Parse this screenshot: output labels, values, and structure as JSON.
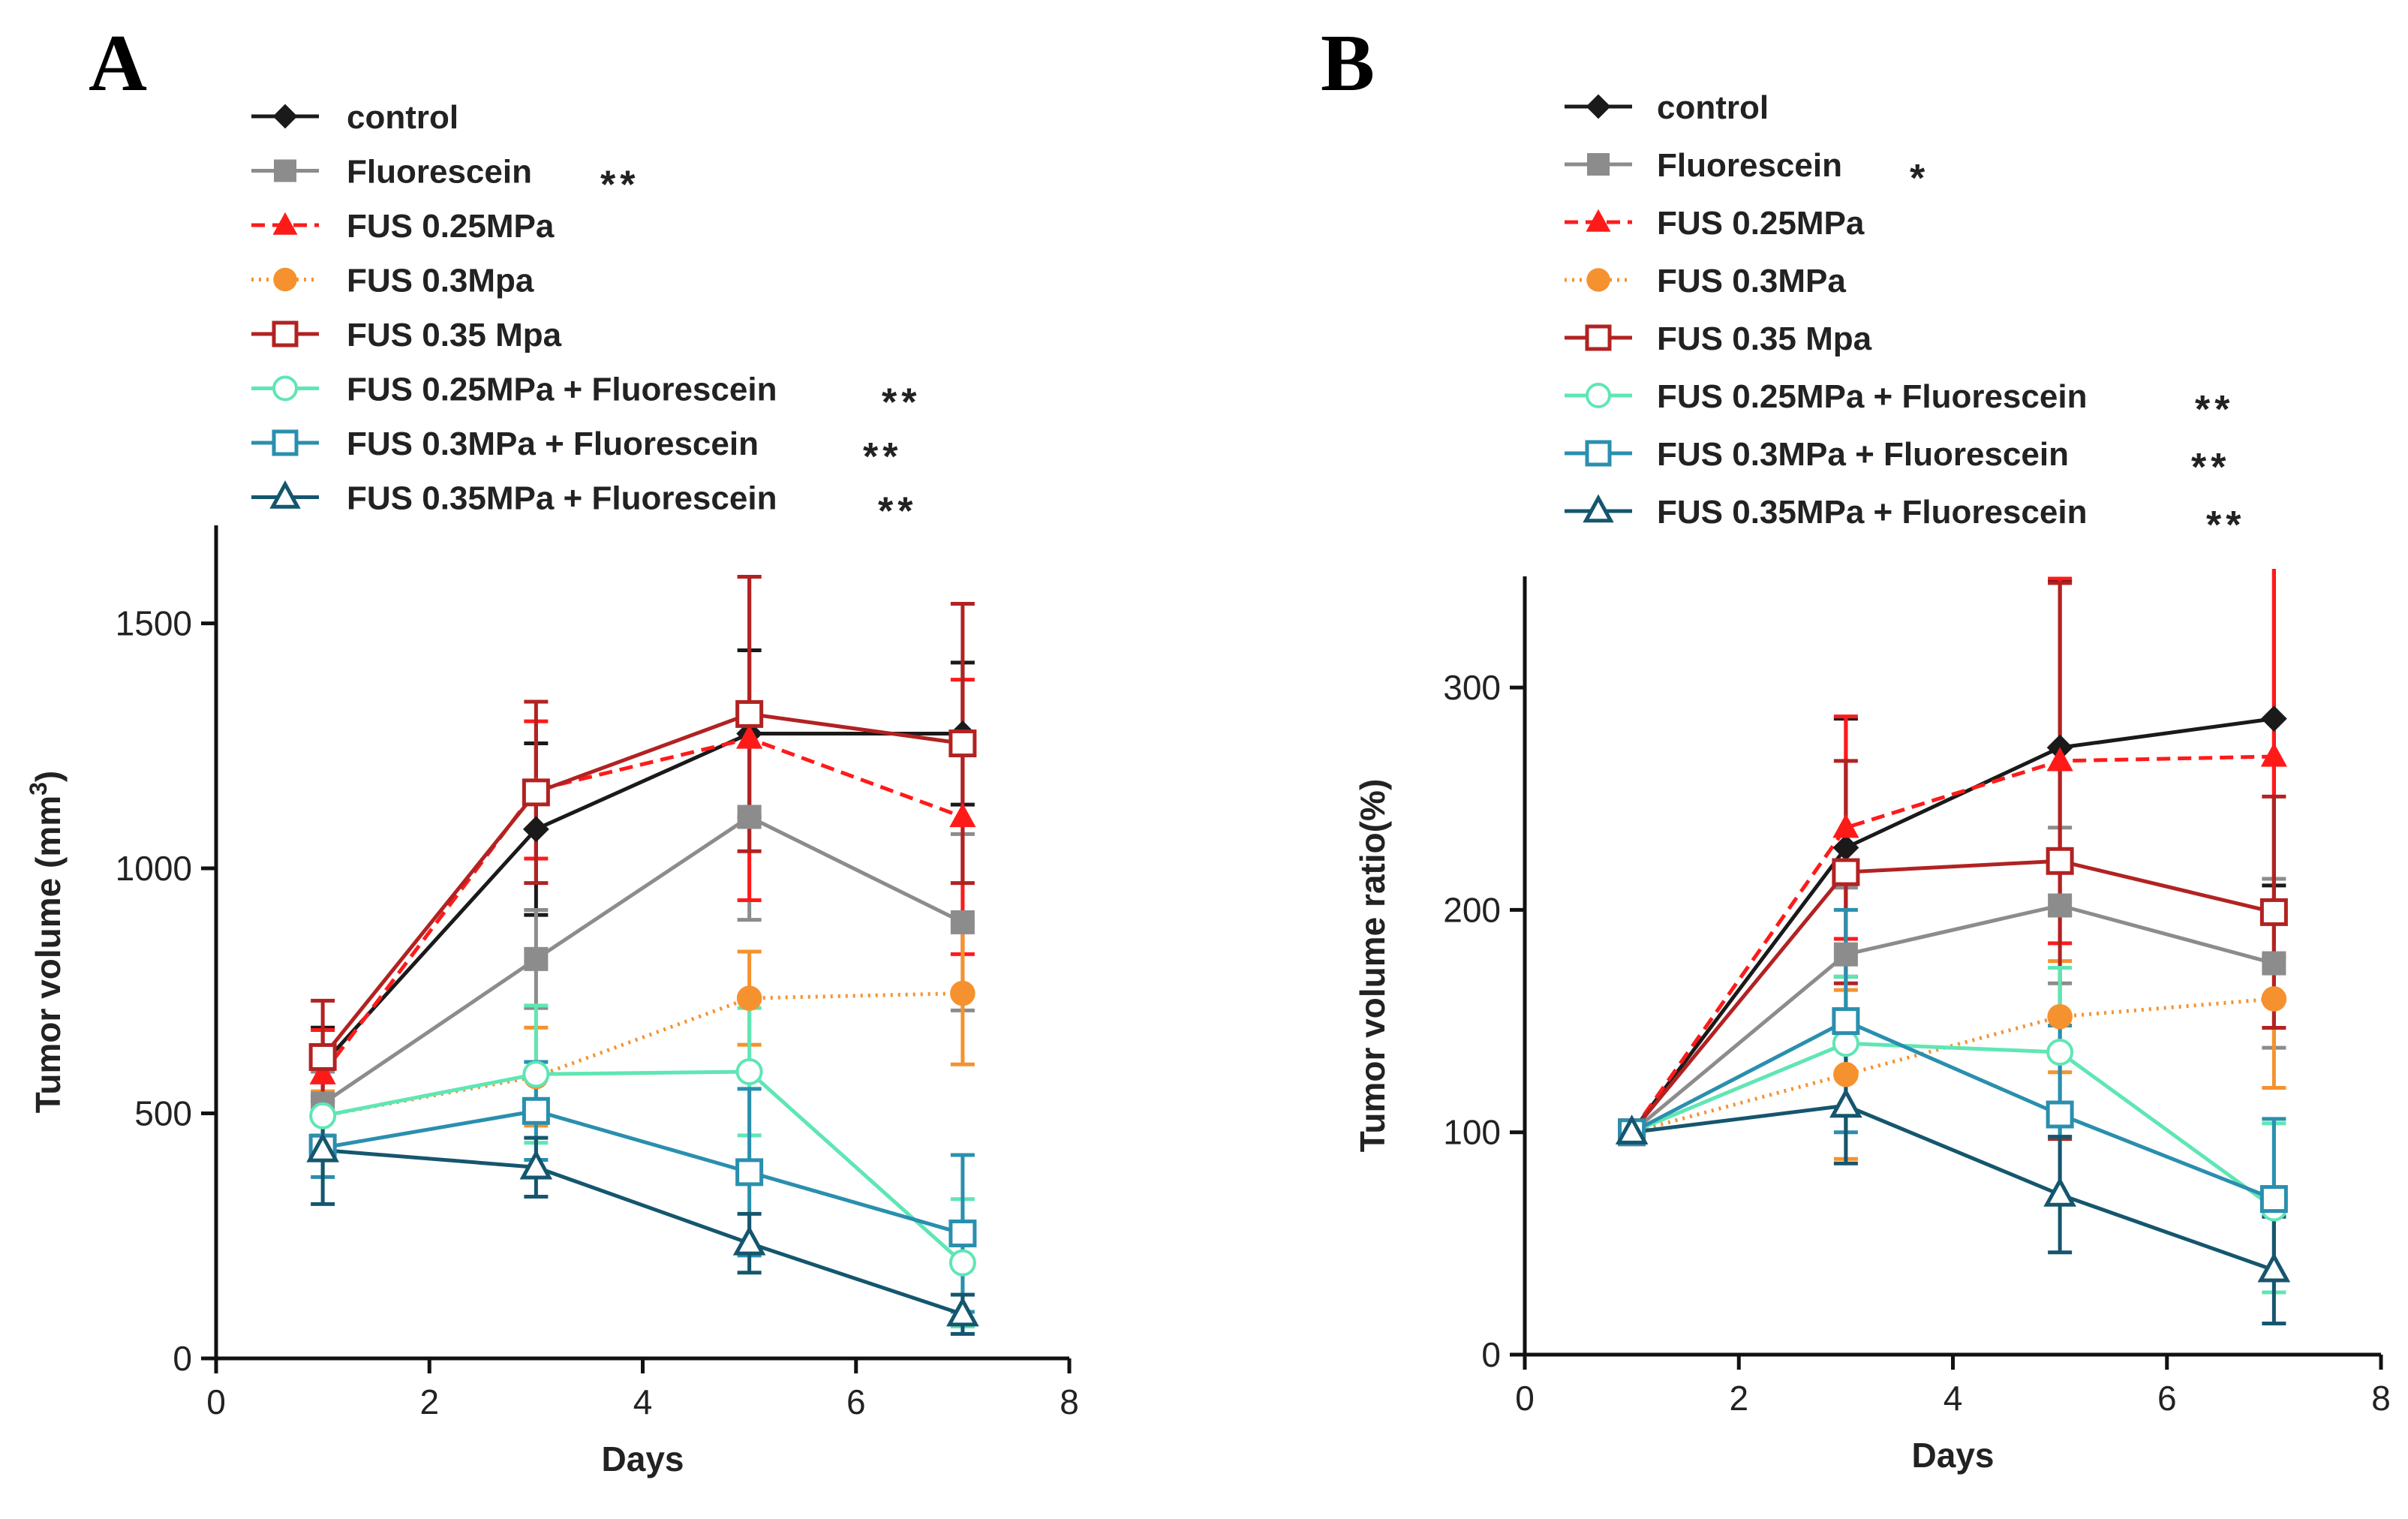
{
  "chart_data": [
    {
      "panel": "A",
      "type": "line",
      "xlabel": "Days",
      "ylabel": "Tumor volume (mm3)",
      "ylabel_main": "Tumor  volume (mm",
      "ylabel_sup": "3",
      "ylabel_end": ")",
      "xlim": [
        0,
        8
      ],
      "ylim": [
        0,
        1700
      ],
      "xticks": [
        0,
        2,
        4,
        6,
        8
      ],
      "yticks": [
        0,
        500,
        1000,
        1500
      ],
      "grid": false,
      "legend_position": "top-left",
      "series": [
        {
          "name": "control",
          "sig": "",
          "color": "#1a1a1a",
          "marker": "diamond",
          "dash": "solid",
          "x": [
            1,
            3,
            5,
            7
          ],
          "values": [
            600,
            1080,
            1275,
            1275
          ],
          "err": [
            75,
            175,
            170,
            145
          ]
        },
        {
          "name": "Fluorescein",
          "sig": "**",
          "color": "#8c8c8c",
          "marker": "square-filled",
          "dash": "solid",
          "x": [
            1,
            3,
            5,
            7
          ],
          "values": [
            520,
            815,
            1105,
            890
          ],
          "err": [
            65,
            100,
            210,
            180
          ]
        },
        {
          "name": "FUS 0.25MPa",
          "sig": "",
          "color": "#ff1a1a",
          "marker": "triangle-filled",
          "dash": "dashed",
          "x": [
            1,
            3,
            5,
            7
          ],
          "values": [
            580,
            1160,
            1265,
            1105
          ],
          "err": [
            90,
            140,
            330,
            280
          ]
        },
        {
          "name": "FUS 0.3Mpa",
          "sig": "",
          "color": "#f5922f",
          "marker": "circle-filled",
          "dash": "dotted",
          "x": [
            1,
            3,
            5,
            7
          ],
          "values": [
            495,
            575,
            735,
            745
          ],
          "err": [
            50,
            100,
            95,
            145
          ]
        },
        {
          "name": "FUS 0.35 Mpa",
          "sig": "",
          "color": "#b22222",
          "marker": "square-open",
          "dash": "solid",
          "x": [
            1,
            3,
            5,
            7
          ],
          "values": [
            615,
            1155,
            1315,
            1255
          ],
          "err": [
            115,
            185,
            280,
            285
          ]
        },
        {
          "name": "FUS 0.25MPa + Fluorescein",
          "sig": "**",
          "color": "#5fe6b4",
          "marker": "circle-open",
          "dash": "solid",
          "x": [
            1,
            3,
            5,
            7
          ],
          "values": [
            495,
            580,
            585,
            195
          ],
          "err": [
            40,
            140,
            130,
            130
          ]
        },
        {
          "name": "FUS 0.3MPa + Fluorescein",
          "sig": "**",
          "color": "#2a8fae",
          "marker": "square-open",
          "dash": "solid",
          "x": [
            1,
            3,
            5,
            7
          ],
          "values": [
            430,
            505,
            380,
            255
          ],
          "err": [
            60,
            100,
            170,
            160
          ]
        },
        {
          "name": "FUS 0.35MPa + Fluorescein",
          "sig": "**",
          "color": "#15566e",
          "marker": "triangle-open",
          "dash": "solid",
          "x": [
            1,
            3,
            5,
            7
          ],
          "values": [
            425,
            390,
            235,
            90
          ],
          "err": [
            110,
            60,
            60,
            40
          ]
        }
      ]
    },
    {
      "panel": "B",
      "type": "line",
      "xlabel": "Days",
      "ylabel": "Tumor  volume ratio(%)",
      "xlim": [
        0,
        8
      ],
      "ylim": [
        0,
        350
      ],
      "xticks": [
        0,
        2,
        4,
        6,
        8
      ],
      "yticks": [
        0,
        100,
        200,
        300
      ],
      "grid": false,
      "legend_position": "top-left",
      "series": [
        {
          "name": "control",
          "sig": "",
          "color": "#1a1a1a",
          "marker": "diamond",
          "dash": "solid",
          "x": [
            1,
            3,
            5,
            7
          ],
          "values": [
            100,
            228,
            273,
            286
          ],
          "err": [
            0,
            58,
            75,
            75
          ]
        },
        {
          "name": "Fluorescein",
          "sig": "*",
          "color": "#8c8c8c",
          "marker": "square-filled",
          "dash": "solid",
          "x": [
            1,
            3,
            5,
            7
          ],
          "values": [
            100,
            180,
            202,
            176
          ],
          "err": [
            0,
            30,
            35,
            38
          ]
        },
        {
          "name": "FUS 0.25MPa",
          "sig": "",
          "color": "#ff1a1a",
          "marker": "triangle-filled",
          "dash": "dashed",
          "x": [
            1,
            3,
            5,
            7
          ],
          "values": [
            100,
            237,
            267,
            269
          ],
          "err": [
            0,
            50,
            82,
            90
          ]
        },
        {
          "name": "FUS 0.3MPa",
          "sig": "",
          "color": "#f5922f",
          "marker": "circle-filled",
          "dash": "dotted",
          "x": [
            1,
            3,
            5,
            7
          ],
          "values": [
            100,
            126,
            152,
            160
          ],
          "err": [
            0,
            38,
            25,
            40
          ]
        },
        {
          "name": "FUS 0.35 Mpa",
          "sig": "",
          "color": "#b22222",
          "marker": "square-open",
          "dash": "solid",
          "x": [
            1,
            3,
            5,
            7
          ],
          "values": [
            100,
            217,
            222,
            199
          ],
          "err": [
            0,
            50,
            125,
            52
          ]
        },
        {
          "name": "FUS 0.25MPa + Fluorescein",
          "sig": "**",
          "color": "#5fe6b4",
          "marker": "circle-open",
          "dash": "solid",
          "x": [
            1,
            3,
            5,
            7
          ],
          "values": [
            100,
            140,
            136,
            66
          ],
          "err": [
            0,
            30,
            38,
            38
          ]
        },
        {
          "name": "FUS 0.3MPa + Fluorescein",
          "sig": "**",
          "color": "#2a8fae",
          "marker": "square-open",
          "dash": "solid",
          "x": [
            1,
            3,
            5,
            7
          ],
          "values": [
            100,
            150,
            108,
            70
          ],
          "err": [
            0,
            50,
            40,
            36
          ]
        },
        {
          "name": "FUS 0.35MPa + Fluorescein",
          "sig": "**",
          "color": "#15566e",
          "marker": "triangle-open",
          "dash": "solid",
          "x": [
            1,
            3,
            5,
            7
          ],
          "values": [
            100,
            112,
            72,
            38
          ],
          "err": [
            0,
            26,
            26,
            24
          ]
        }
      ]
    }
  ]
}
